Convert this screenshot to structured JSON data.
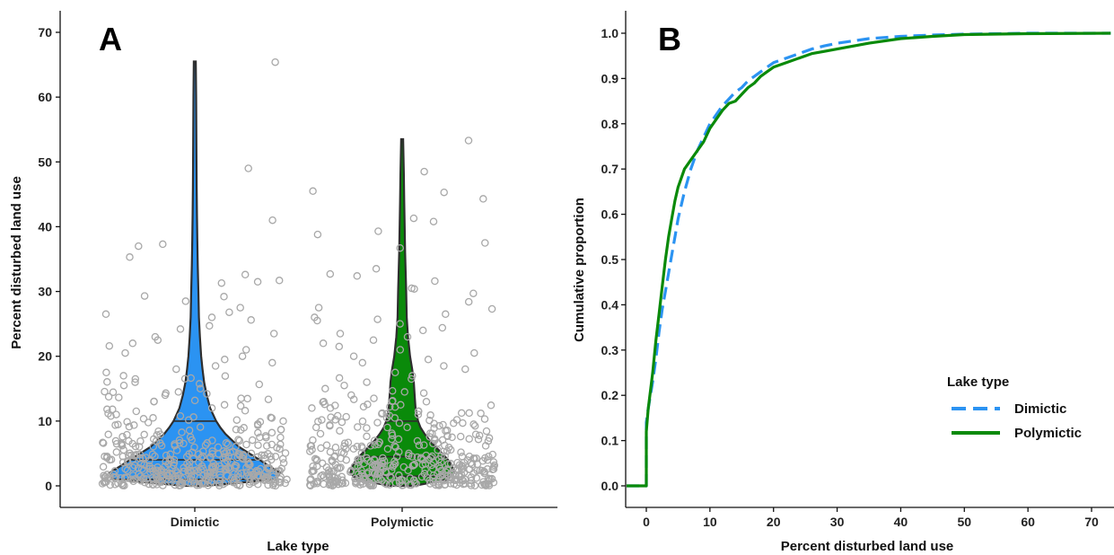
{
  "chart_data": [
    {
      "panel": "A",
      "type": "violin",
      "xlabel": "Lake type",
      "ylabel": "Percent disturbed land use",
      "categories": [
        "Dimictic",
        "Polymictic"
      ],
      "ylim": [
        0,
        72
      ],
      "yticks": [
        0,
        10,
        20,
        30,
        40,
        50,
        60,
        70
      ],
      "grid": false,
      "points_style": "jittered open circles",
      "colors": {
        "Dimictic": "#2b93f2",
        "Polymictic": "#0a8a0a",
        "points": "#a8a8a8",
        "outline": "#2e2e2e"
      },
      "series": [
        {
          "name": "Dimictic",
          "quantiles": [
            1,
            4,
            10
          ],
          "max": 65.5,
          "profile": [
            [
              0,
              0.12
            ],
            [
              1,
              0.95
            ],
            [
              2,
              1.0
            ],
            [
              3,
              0.88
            ],
            [
              4,
              0.76
            ],
            [
              5,
              0.64
            ],
            [
              6,
              0.52
            ],
            [
              7,
              0.44
            ],
            [
              8,
              0.36
            ],
            [
              9,
              0.3
            ],
            [
              10,
              0.25
            ],
            [
              12,
              0.18
            ],
            [
              14,
              0.14
            ],
            [
              16,
              0.11
            ],
            [
              18,
              0.09
            ],
            [
              20,
              0.075
            ],
            [
              23,
              0.06
            ],
            [
              26,
              0.048
            ],
            [
              30,
              0.042
            ],
            [
              34,
              0.035
            ],
            [
              38,
              0.03
            ],
            [
              42,
              0.025
            ],
            [
              46,
              0.022
            ],
            [
              50,
              0.02
            ],
            [
              55,
              0.018
            ],
            [
              60,
              0.016
            ],
            [
              65.5,
              0.012
            ]
          ],
          "outliers": [
            65.4,
            49,
            41,
            37.3,
            37,
            35.3,
            32.6,
            31.7,
            31.5,
            31.3,
            29.3,
            29.2,
            28.5,
            27.5,
            26.8,
            26.5,
            26,
            25.6,
            24.7,
            24.2,
            23.5,
            23,
            22.5,
            22,
            21.6,
            21,
            20.5,
            20,
            19.5,
            19,
            18.5,
            18,
            17.5,
            17,
            16.5,
            16,
            15.5,
            15,
            14.5,
            14,
            13.5,
            13,
            12.5,
            12,
            11.5,
            11,
            10.5
          ]
        },
        {
          "name": "Polymictic",
          "quantiles": [
            1.5,
            4.5,
            10
          ],
          "max": 53.5,
          "profile": [
            [
              0,
              0.14
            ],
            [
              1,
              0.55
            ],
            [
              2,
              0.62
            ],
            [
              3,
              0.6
            ],
            [
              4,
              0.55
            ],
            [
              5,
              0.48
            ],
            [
              6,
              0.4
            ],
            [
              7,
              0.33
            ],
            [
              8,
              0.27
            ],
            [
              9,
              0.22
            ],
            [
              10,
              0.19
            ],
            [
              12,
              0.16
            ],
            [
              14,
              0.15
            ],
            [
              16,
              0.14
            ],
            [
              18,
              0.12
            ],
            [
              20,
              0.095
            ],
            [
              23,
              0.07
            ],
            [
              26,
              0.055
            ],
            [
              30,
              0.048
            ],
            [
              33,
              0.042
            ],
            [
              36,
              0.035
            ],
            [
              40,
              0.03
            ],
            [
              44,
              0.025
            ],
            [
              48,
              0.02
            ],
            [
              53.5,
              0.012
            ]
          ],
          "outliers": [
            53.3,
            48.5,
            45.5,
            45.3,
            44.3,
            41.3,
            40.8,
            39.3,
            38.8,
            37.5,
            36.7,
            33.5,
            32.7,
            32.4,
            31.6,
            30.5,
            30.4,
            29.7,
            28.4,
            27.5,
            27.3,
            26.5,
            26,
            25.7,
            25.5,
            25,
            24.4,
            24,
            23.5,
            23,
            22.5,
            22,
            21.5,
            21,
            20.5,
            20,
            19.5,
            19,
            18.5,
            18,
            17.5,
            17,
            16.5,
            16,
            15.5,
            15,
            14.5,
            14,
            13.5,
            13,
            12.5,
            12,
            11.5,
            11,
            10.5
          ]
        }
      ]
    },
    {
      "panel": "B",
      "type": "line",
      "subtype": "ecdf",
      "xlabel": "Percent disturbed land use",
      "ylabel": "Cumulative proportion",
      "xlim": [
        -4,
        73
      ],
      "ylim": [
        -0.03,
        1.03
      ],
      "xticks": [
        0,
        10,
        20,
        30,
        40,
        50,
        60,
        70
      ],
      "yticks": [
        "0.0",
        "0.1",
        "0.2",
        "0.3",
        "0.4",
        "0.5",
        "0.6",
        "0.7",
        "0.8",
        "0.9",
        "1.0"
      ],
      "grid": false,
      "legend": {
        "title": "Lake type",
        "placement": "bottom-right"
      },
      "series": [
        {
          "name": "Dimictic",
          "color": "#2b93f2",
          "dash": "dashed",
          "x": [
            -4,
            0,
            0,
            0.3,
            1,
            1.5,
            2,
            2.5,
            3,
            3.5,
            4,
            4.5,
            5,
            6,
            7,
            8,
            9,
            10,
            11,
            12,
            13,
            14,
            15,
            16,
            17,
            18,
            19,
            20,
            22,
            24,
            26,
            28,
            30,
            35,
            40,
            45,
            50,
            60,
            73
          ],
          "y": [
            0,
            0,
            0.14,
            0.17,
            0.23,
            0.28,
            0.34,
            0.39,
            0.43,
            0.47,
            0.51,
            0.55,
            0.59,
            0.65,
            0.7,
            0.74,
            0.77,
            0.8,
            0.82,
            0.84,
            0.855,
            0.87,
            0.88,
            0.895,
            0.905,
            0.915,
            0.925,
            0.935,
            0.945,
            0.955,
            0.965,
            0.972,
            0.978,
            0.988,
            0.993,
            0.996,
            0.998,
            1.0,
            1.0
          ]
        },
        {
          "name": "Polymictic",
          "color": "#0a8a0a",
          "dash": "solid",
          "x": [
            -4,
            0,
            0,
            0.3,
            1,
            1.5,
            2,
            2.5,
            3,
            3.5,
            4,
            4.5,
            5,
            6,
            7,
            8,
            9,
            10,
            11,
            12,
            13,
            14,
            15,
            16,
            17,
            18,
            19,
            20,
            22,
            24,
            26,
            28,
            30,
            35,
            40,
            45,
            50,
            60,
            73
          ],
          "y": [
            0,
            0,
            0.12,
            0.17,
            0.25,
            0.32,
            0.38,
            0.44,
            0.5,
            0.55,
            0.59,
            0.63,
            0.66,
            0.7,
            0.72,
            0.74,
            0.76,
            0.79,
            0.81,
            0.83,
            0.845,
            0.85,
            0.865,
            0.88,
            0.89,
            0.905,
            0.915,
            0.925,
            0.935,
            0.945,
            0.955,
            0.96,
            0.965,
            0.978,
            0.988,
            0.993,
            0.997,
            0.999,
            1.0
          ]
        }
      ]
    }
  ]
}
